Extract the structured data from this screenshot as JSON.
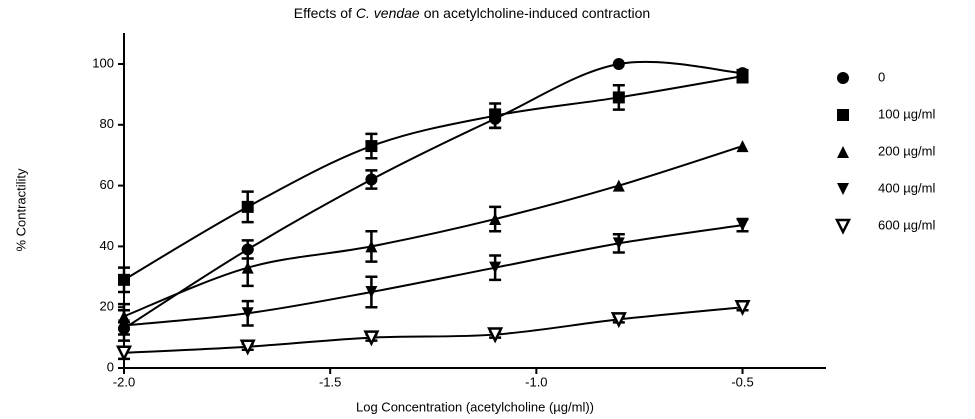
{
  "chart_data": {
    "type": "scatter",
    "title": [
      "Effects of",
      "C. vendae",
      "on acetylcholine-induced contraction"
    ],
    "xlabel": "Log Concentration (acetylcholine (µg/ml))",
    "ylabel": "% Contractility",
    "x": [
      -2.0,
      -1.7,
      -1.4,
      -1.1,
      -0.8,
      -0.5
    ],
    "xlim": [
      -2.0,
      -0.3
    ],
    "xticks": [
      {
        "value": -2,
        "label": "-2.0"
      },
      {
        "value": -1.5,
        "label": "-1.5"
      },
      {
        "value": -1,
        "label": "-1.0"
      },
      -0.5
    ],
    "ylim": [
      0,
      110
    ],
    "yticks": [
      0,
      20,
      40,
      60,
      80,
      100
    ],
    "legend": "right",
    "series": [
      {
        "name": "0",
        "color": "#000000",
        "marker": "circle",
        "values": [
          13,
          39,
          62,
          82,
          100,
          97
        ],
        "errors": [
          2,
          3,
          3,
          3,
          0,
          0
        ]
      },
      {
        "name": "100 µg/ml",
        "color": "#000000",
        "marker": "square",
        "values": [
          29,
          53,
          73,
          83,
          89,
          96
        ],
        "errors": [
          4,
          5,
          4,
          4,
          4,
          2
        ]
      },
      {
        "name": "200 µg/ml",
        "color": "#000000",
        "marker": "triangle-up",
        "values": [
          17,
          33,
          40,
          49,
          60,
          73
        ],
        "errors": [
          4,
          6,
          5,
          4,
          0,
          0
        ]
      },
      {
        "name": "400 µg/ml",
        "color": "#000000",
        "marker": "triangle-down",
        "values": [
          14,
          18,
          25,
          33,
          41,
          47
        ],
        "errors": [
          5,
          4,
          5,
          4,
          3,
          2
        ]
      },
      {
        "name": "600 µg/ml",
        "color": "#000000",
        "marker": "triangle-down-open",
        "values": [
          5,
          7,
          10,
          11,
          16,
          20
        ],
        "errors": [
          2,
          1,
          1,
          1,
          1,
          1
        ]
      }
    ]
  }
}
